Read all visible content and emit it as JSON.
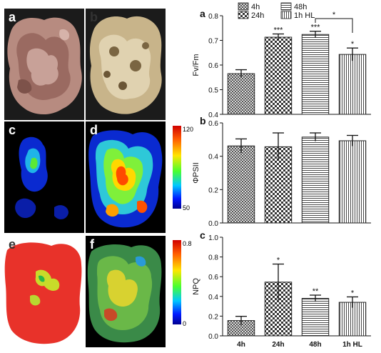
{
  "images": [
    {
      "id": "a",
      "label": "a"
    },
    {
      "id": "b",
      "label": "b"
    },
    {
      "id": "c",
      "label": "c",
      "colorbar": {
        "max_label": "120",
        "min_label": "50"
      }
    },
    {
      "id": "d",
      "label": "d"
    },
    {
      "id": "e",
      "label": "e"
    },
    {
      "id": "f",
      "label": "f",
      "colorbar": {
        "max_label": "0.8",
        "min_label": "0"
      }
    }
  ],
  "legend": {
    "entries": [
      "4h",
      "24h",
      "48h",
      "1h HL"
    ],
    "placement": "top",
    "patterns": [
      "hatch-fine",
      "checker",
      "horizontal-lines",
      "vertical-lines"
    ]
  },
  "colors": {
    "bar_fill": "#ffffff",
    "bar_stroke": "#222222",
    "tile_background": "#000000"
  },
  "chart_data": [
    {
      "type": "bar",
      "panel_label": "a",
      "categories": [
        "4h",
        "24h",
        "48h",
        "1h HL"
      ],
      "values": [
        0.565,
        0.713,
        0.724,
        0.643
      ],
      "errors": [
        0.016,
        0.013,
        0.013,
        0.026
      ],
      "significance": [
        "",
        "***",
        "***",
        "*"
      ],
      "bracket": {
        "from": 2,
        "to": 3,
        "label": "*"
      },
      "ylabel": "Fv/Fm",
      "ylim": [
        0.4,
        0.8
      ],
      "yticks": [
        "0.4",
        "0.5",
        "0.6",
        "0.7",
        "0.8"
      ],
      "show_xticklabels": false
    },
    {
      "type": "bar",
      "panel_label": "b",
      "categories": [
        "4h",
        "24h",
        "48h",
        "1h HL"
      ],
      "values": [
        0.462,
        0.457,
        0.515,
        0.493
      ],
      "errors": [
        0.042,
        0.083,
        0.025,
        0.032
      ],
      "significance": [
        "",
        "",
        "",
        ""
      ],
      "ylabel": "ΦPSII",
      "ylim": [
        0.0,
        0.6
      ],
      "yticks": [
        "0.0",
        "0.2",
        "0.4",
        "0.6"
      ],
      "show_xticklabels": false
    },
    {
      "type": "bar",
      "panel_label": "c",
      "categories": [
        "4h",
        "24h",
        "48h",
        "1h HL"
      ],
      "values": [
        0.155,
        0.545,
        0.38,
        0.34
      ],
      "errors": [
        0.043,
        0.183,
        0.033,
        0.055
      ],
      "significance": [
        "",
        "*",
        "**",
        "*"
      ],
      "ylabel": "NPQ",
      "ylim": [
        0.0,
        1.0
      ],
      "yticks": [
        "0.0",
        "0.2",
        "0.4",
        "0.6",
        "0.8",
        "1.0"
      ],
      "show_xticklabels": true
    }
  ]
}
